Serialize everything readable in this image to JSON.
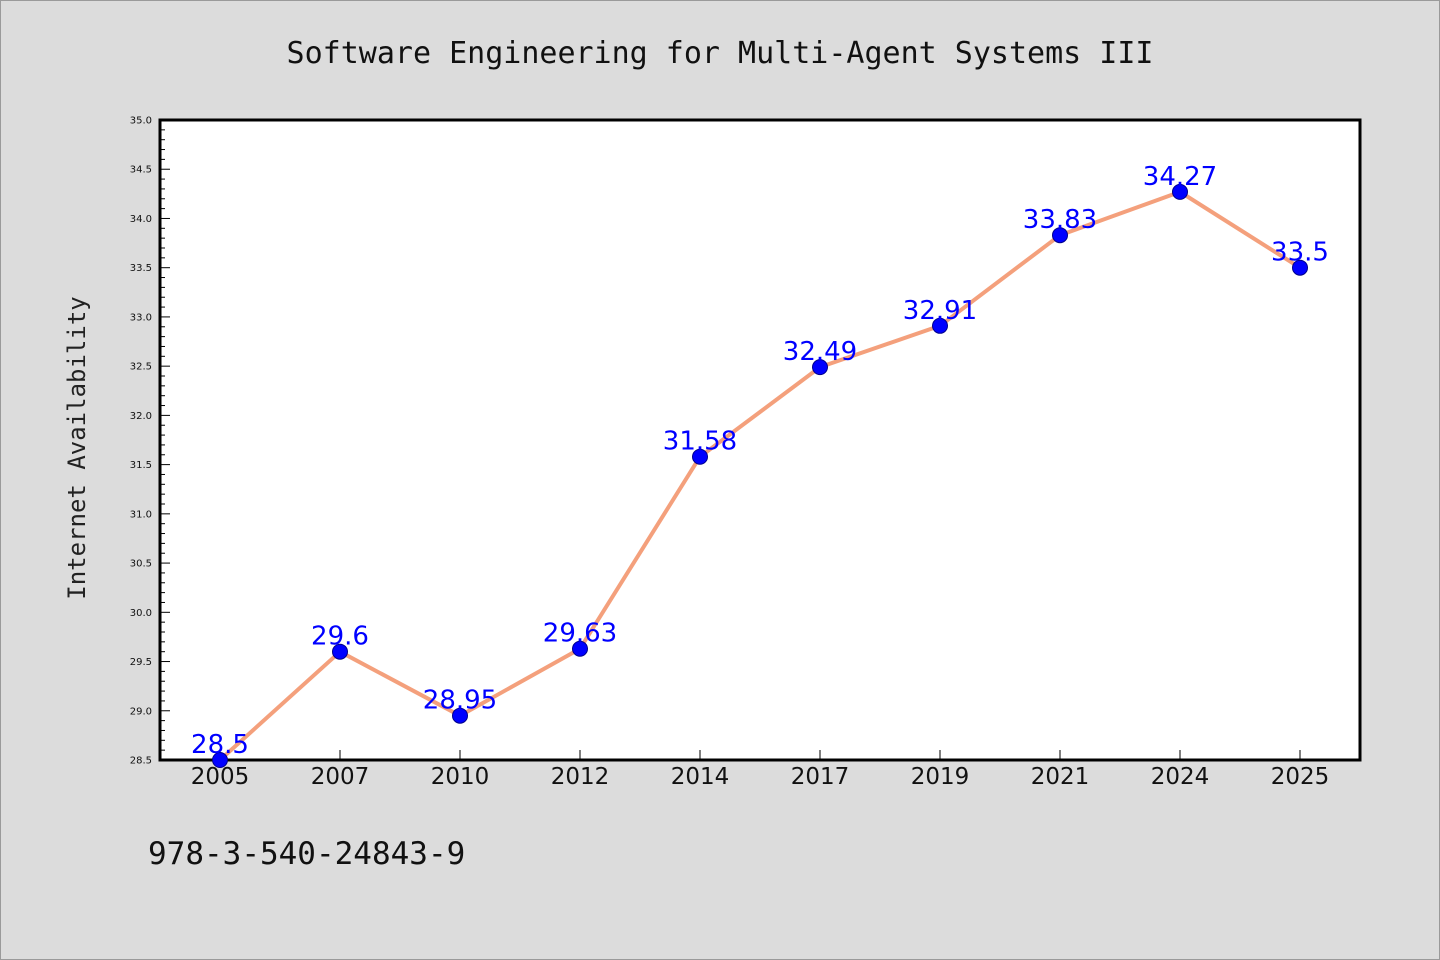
{
  "chart_data": {
    "type": "line",
    "title": "Software Engineering for Multi-Agent Systems III",
    "xlabel": "",
    "ylabel": "Internet Availability",
    "categories": [
      "2005",
      "2007",
      "2010",
      "2012",
      "2014",
      "2017",
      "2019",
      "2021",
      "2024",
      "2025"
    ],
    "series": [
      {
        "values": [
          28.5,
          29.6,
          28.95,
          29.63,
          31.58,
          32.49,
          32.91,
          33.83,
          34.27,
          33.5
        ],
        "labels": [
          "28.5",
          "29.6",
          "28.95",
          "29.63",
          "31.58",
          "32.49",
          "32.91",
          "33.83",
          "34.27",
          "33.5"
        ]
      }
    ],
    "ylim": [
      28.5,
      35.0
    ],
    "yticks": [
      "28.5",
      "29.0",
      "29.5",
      "30.0",
      "30.5",
      "31.0",
      "31.5",
      "32.0",
      "32.5",
      "33.0",
      "33.5",
      "34.0",
      "34.5",
      "35.0"
    ],
    "grid": false,
    "legend": "none",
    "colors": {
      "line": "#f4a07c",
      "marker": "#0000ff",
      "label": "#0000ff",
      "background": "#dcdcdc",
      "plot_background": "#ffffff"
    }
  },
  "footer": {
    "isbn": "978-3-540-24843-9"
  }
}
